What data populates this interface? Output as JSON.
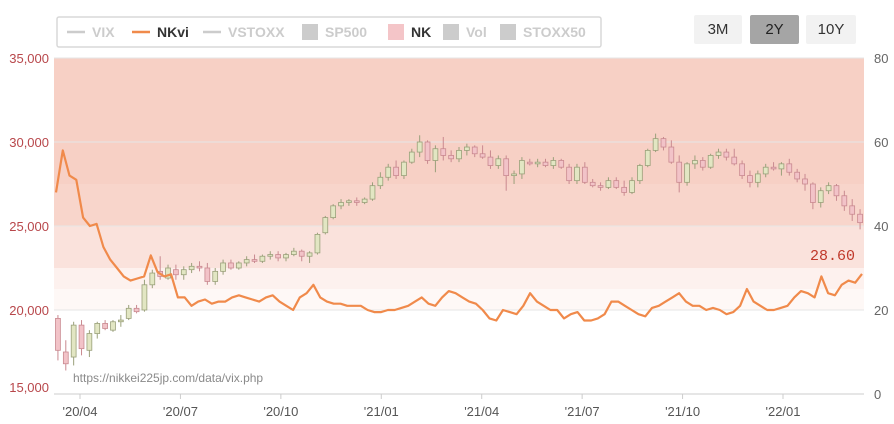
{
  "legend": [
    {
      "label": "VIX",
      "type": "line",
      "color": "#cccccc",
      "active": false
    },
    {
      "label": "NKvi",
      "type": "line",
      "color": "#f08a4b",
      "active": true
    },
    {
      "label": "VSTOXX",
      "type": "line",
      "color": "#cccccc",
      "active": false
    },
    {
      "label": "SP500",
      "type": "box",
      "color": "#cccccc",
      "active": false
    },
    {
      "label": "NK",
      "type": "box",
      "color": "#f4c5c8",
      "active": true
    },
    {
      "label": "Vol",
      "type": "box",
      "color": "#cccccc",
      "active": false
    },
    {
      "label": "STOXX50",
      "type": "box",
      "color": "#cccccc",
      "active": false
    }
  ],
  "range_buttons": [
    {
      "label": "3M",
      "selected": false
    },
    {
      "label": "2Y",
      "selected": true
    },
    {
      "label": "10Y",
      "selected": false
    }
  ],
  "watermark": "https://nikkei225jp.com/data/vix.php",
  "last_value_label": "28.60",
  "colors": {
    "nk_line": "#f08a4b",
    "candle_up_fill": "#e2e6c3",
    "candle_up_stroke": "#9aa07a",
    "candle_down_fill": "#f2c3c8",
    "candle_down_stroke": "#c98990",
    "band_high": "#f7d0c5",
    "band_mid": "#fae2dc",
    "band_low": "#fdf1ee",
    "band_lowest": "#fef8f6"
  },
  "chart_data": {
    "type": "line",
    "title": "",
    "x_tick_labels": [
      "'20/04",
      "'20/07",
      "'20/10",
      "'21/01",
      "'21/04",
      "'21/07",
      "'21/10",
      "'22/01"
    ],
    "y_left": {
      "label": "",
      "range": [
        15000,
        35000
      ],
      "ticks": [
        15000,
        20000,
        25000,
        30000,
        35000
      ],
      "tick_labels": [
        "15,000",
        "20,000",
        "25,000",
        "30,000",
        "35,000"
      ]
    },
    "y_right": {
      "label": "",
      "range": [
        0,
        80
      ],
      "ticks": [
        0,
        20,
        40,
        60,
        80
      ],
      "tick_labels": [
        "0",
        "20",
        "40",
        "60",
        "80"
      ]
    },
    "volatility_bands": [
      {
        "from": 20,
        "to": 25
      },
      {
        "from": 25,
        "to": 30
      },
      {
        "from": 30,
        "to": 40
      },
      {
        "from": 40,
        "to": 50
      },
      {
        "from": 50,
        "to": 80
      }
    ],
    "series": [
      {
        "name": "NKvi",
        "axis": "right",
        "values": [
          48,
          58,
          52,
          51,
          42,
          40,
          40.5,
          35,
          32,
          30,
          28,
          27,
          27.5,
          28,
          33,
          29,
          28,
          28.5,
          23,
          23,
          21,
          22,
          22.5,
          21.5,
          22,
          22,
          23,
          23.5,
          23,
          22.5,
          22,
          23,
          23.5,
          22,
          21,
          20,
          23,
          24,
          26,
          23,
          22,
          21.5,
          21.5,
          21,
          21,
          21,
          20,
          19.5,
          19.5,
          20,
          20,
          20.5,
          21,
          22,
          23,
          21.5,
          21,
          23,
          24.5,
          24,
          23,
          22,
          21.5,
          20,
          18,
          17.5,
          20,
          19.5,
          19,
          21,
          24,
          22,
          21,
          20,
          20,
          18,
          19,
          19.5,
          17.5,
          17.5,
          18,
          19,
          22,
          22,
          21,
          20,
          19,
          18.5,
          20.5,
          21,
          22,
          23,
          24,
          22,
          21,
          21,
          20,
          20.5,
          20,
          19,
          19.5,
          21,
          25,
          22,
          21,
          20,
          20,
          20.5,
          21,
          23,
          24.5,
          24,
          23,
          28,
          24,
          23.5,
          26,
          27,
          26.5,
          28.6
        ]
      },
      {
        "name": "NK",
        "type": "candlestick",
        "axis": "left",
        "ohlc": [
          [
            19500,
            19700,
            17000,
            17600
          ],
          [
            17500,
            18200,
            16400,
            16800
          ],
          [
            17200,
            19300,
            16700,
            19100
          ],
          [
            19100,
            19400,
            17300,
            17700
          ],
          [
            17600,
            18800,
            17200,
            18600
          ],
          [
            18600,
            19300,
            18300,
            19200
          ],
          [
            19200,
            19400,
            18800,
            18900
          ],
          [
            18800,
            19400,
            18700,
            19300
          ],
          [
            19300,
            19700,
            19000,
            19400
          ],
          [
            19500,
            20300,
            19400,
            20100
          ],
          [
            20100,
            20300,
            19800,
            19900
          ],
          [
            20000,
            21800,
            19900,
            21500
          ],
          [
            21500,
            22400,
            21300,
            22200
          ],
          [
            22300,
            23200,
            21800,
            22000
          ],
          [
            21900,
            22700,
            21800,
            22500
          ],
          [
            22400,
            22700,
            21800,
            22100
          ],
          [
            22100,
            22600,
            21800,
            22400
          ],
          [
            22400,
            22800,
            22200,
            22600
          ],
          [
            22600,
            22900,
            22300,
            22500
          ],
          [
            22500,
            22800,
            21500,
            21700
          ],
          [
            21700,
            22500,
            21500,
            22300
          ],
          [
            22300,
            23000,
            22100,
            22800
          ],
          [
            22800,
            23000,
            22400,
            22500
          ],
          [
            22500,
            22900,
            22400,
            22800
          ],
          [
            22800,
            23200,
            22600,
            23000
          ],
          [
            23000,
            23300,
            22800,
            22900
          ],
          [
            22900,
            23300,
            22800,
            23200
          ],
          [
            23200,
            23500,
            23000,
            23300
          ],
          [
            23300,
            23500,
            22900,
            23100
          ],
          [
            23100,
            23400,
            22900,
            23300
          ],
          [
            23300,
            23700,
            23200,
            23500
          ],
          [
            23500,
            23600,
            22900,
            23200
          ],
          [
            23200,
            23500,
            22800,
            23400
          ],
          [
            23400,
            24600,
            23300,
            24500
          ],
          [
            24600,
            25600,
            24500,
            25500
          ],
          [
            25500,
            26300,
            25400,
            26200
          ],
          [
            26200,
            26600,
            26000,
            26400
          ],
          [
            26400,
            26600,
            26200,
            26500
          ],
          [
            26500,
            26700,
            26200,
            26400
          ],
          [
            26400,
            26700,
            26300,
            26600
          ],
          [
            26600,
            27600,
            26500,
            27400
          ],
          [
            27400,
            28200,
            27200,
            27900
          ],
          [
            27900,
            28700,
            27700,
            28500
          ],
          [
            28500,
            28900,
            27800,
            28000
          ],
          [
            28000,
            28900,
            27800,
            28800
          ],
          [
            28800,
            29600,
            28700,
            29400
          ],
          [
            29400,
            30400,
            29100,
            30000
          ],
          [
            30000,
            30100,
            28700,
            28900
          ],
          [
            28900,
            29800,
            28200,
            29600
          ],
          [
            29600,
            30300,
            28900,
            29200
          ],
          [
            29200,
            29500,
            28800,
            29000
          ],
          [
            29000,
            29700,
            28800,
            29500
          ],
          [
            29500,
            29900,
            29200,
            29700
          ],
          [
            29700,
            29800,
            29100,
            29300
          ],
          [
            29300,
            29800,
            29000,
            29100
          ],
          [
            29100,
            29500,
            28400,
            28600
          ],
          [
            28600,
            29200,
            28400,
            29000
          ],
          [
            29000,
            29200,
            27100,
            28000
          ],
          [
            28000,
            28300,
            27500,
            28100
          ],
          [
            28100,
            29100,
            27800,
            28900
          ],
          [
            28800,
            29000,
            28600,
            28700
          ],
          [
            28700,
            29000,
            28500,
            28800
          ],
          [
            28800,
            29000,
            28500,
            28600
          ],
          [
            28600,
            29100,
            28400,
            28900
          ],
          [
            28900,
            29000,
            28400,
            28500
          ],
          [
            28500,
            28700,
            27500,
            27700
          ],
          [
            27700,
            28700,
            27500,
            28500
          ],
          [
            28500,
            28800,
            27500,
            27600
          ],
          [
            27600,
            27800,
            27300,
            27400
          ],
          [
            27400,
            27600,
            27100,
            27300
          ],
          [
            27300,
            27900,
            27200,
            27700
          ],
          [
            27700,
            27900,
            27200,
            27300
          ],
          [
            27300,
            27700,
            26800,
            27000
          ],
          [
            27000,
            27900,
            26900,
            27700
          ],
          [
            27700,
            28700,
            27500,
            28600
          ],
          [
            28600,
            29600,
            28500,
            29500
          ],
          [
            29500,
            30500,
            29400,
            30200
          ],
          [
            30200,
            30300,
            29500,
            29700
          ],
          [
            29700,
            30100,
            28700,
            28800
          ],
          [
            28800,
            29200,
            27000,
            27600
          ],
          [
            27600,
            28800,
            27400,
            28700
          ],
          [
            28700,
            29200,
            28400,
            28900
          ],
          [
            28900,
            29100,
            28300,
            28500
          ],
          [
            28500,
            29300,
            28400,
            29200
          ],
          [
            29200,
            29600,
            29000,
            29400
          ],
          [
            29400,
            29600,
            28900,
            29100
          ],
          [
            29100,
            29600,
            28600,
            28700
          ],
          [
            28700,
            28900,
            27800,
            28000
          ],
          [
            28000,
            28300,
            27300,
            27600
          ],
          [
            27600,
            28300,
            27300,
            28100
          ],
          [
            28100,
            28700,
            27900,
            28500
          ],
          [
            28500,
            28800,
            28300,
            28400
          ],
          [
            28400,
            28800,
            28000,
            28700
          ],
          [
            28700,
            29000,
            28000,
            28200
          ],
          [
            28200,
            28400,
            27600,
            27800
          ],
          [
            27800,
            28100,
            27100,
            27500
          ],
          [
            27500,
            27600,
            26000,
            26400
          ],
          [
            26400,
            27300,
            26100,
            27100
          ],
          [
            27100,
            27600,
            26900,
            27400
          ],
          [
            27400,
            27500,
            26500,
            26800
          ],
          [
            26800,
            27100,
            25900,
            26200
          ],
          [
            26200,
            26600,
            25300,
            25700
          ],
          [
            25700,
            26000,
            24800,
            25200
          ]
        ]
      }
    ]
  }
}
